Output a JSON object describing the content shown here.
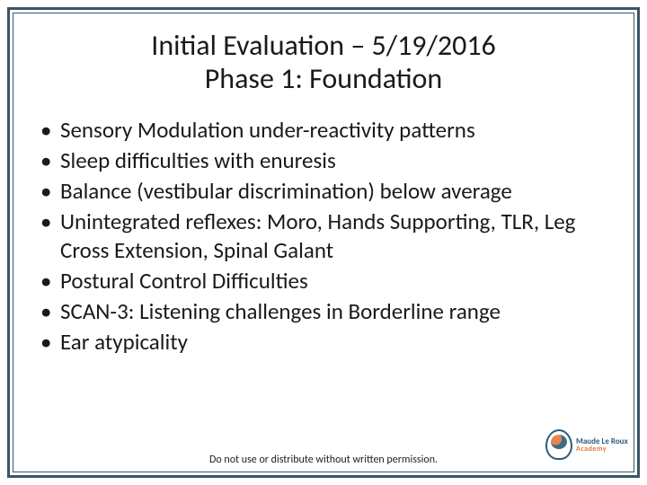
{
  "title": {
    "line1": "Initial Evaluation – 5/19/2016",
    "line2": "Phase 1: Foundation"
  },
  "bullets": [
    "Sensory Modulation under-reactivity patterns",
    "Sleep difficulties with enuresis",
    "Balance (vestibular discrimination) below average",
    "Unintegrated reflexes: Moro, Hands Supporting, TLR, Leg Cross Extension, Spinal Galant",
    "Postural Control Difficulties",
    "SCAN-3: Listening challenges in Borderline range",
    "Ear atypicality"
  ],
  "footer": "Do not use or distribute without written permission.",
  "logo": {
    "name": "Maude Le Roux",
    "sub": "Academy"
  },
  "style": {
    "frame_color": "#3b5566",
    "title_fontsize": 32,
    "bullet_fontsize": 25,
    "footer_fontsize": 12,
    "text_color": "#1a1a1a",
    "background_color": "#ffffff",
    "logo_primary": "#2c5a7a",
    "logo_accent": "#e07a3a"
  }
}
